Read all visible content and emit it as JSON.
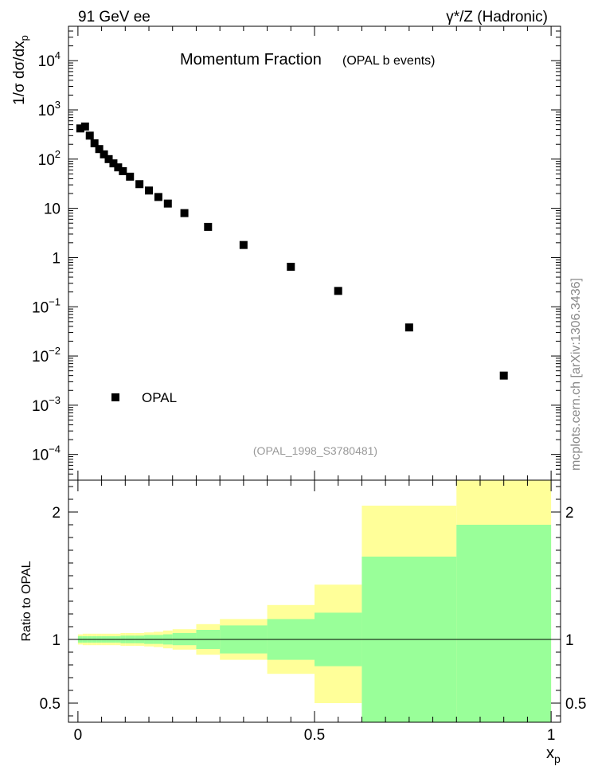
{
  "header": {
    "left": "91 GeV ee",
    "right": "γ*/Z (Hadronic)"
  },
  "watermark": "mcplots.cern.ch [arXiv:1306.3436]",
  "chart_data": [
    {
      "type": "scatter",
      "panel": "main",
      "title": "Momentum Fraction",
      "subtitle": "(OPAL b events)",
      "ylabel_parts": {
        "main": "1/σ dσ/dx",
        "sub": "p"
      },
      "yscale": "log",
      "ylim": [
        3e-05,
        50000
      ],
      "xlim": [
        -0.02,
        1.02
      ],
      "y_tick_labels": [
        {
          "v": 10000,
          "base": "10",
          "exp": "4"
        },
        {
          "v": 1000,
          "base": "10",
          "exp": "3"
        },
        {
          "v": 100,
          "base": "10",
          "exp": "2"
        },
        {
          "v": 10,
          "base": "10",
          "exp": ""
        },
        {
          "v": 1,
          "base": "1",
          "exp": ""
        },
        {
          "v": 0.1,
          "base": "10",
          "exp": "−1"
        },
        {
          "v": 0.01,
          "base": "10",
          "exp": "−2"
        },
        {
          "v": 0.001,
          "base": "10",
          "exp": "−3"
        },
        {
          "v": 0.0001,
          "base": "10",
          "exp": "−4"
        }
      ],
      "legend": {
        "entry": "OPAL",
        "color": "#000000",
        "placement": "bottom-left"
      },
      "annotation": "(OPAL_1998_S3780481)",
      "series": [
        {
          "name": "OPAL",
          "marker": "square",
          "color": "#000000",
          "x": [
            0.005,
            0.015,
            0.025,
            0.035,
            0.045,
            0.055,
            0.065,
            0.075,
            0.085,
            0.095,
            0.11,
            0.13,
            0.15,
            0.17,
            0.19,
            0.225,
            0.275,
            0.35,
            0.45,
            0.55,
            0.7,
            0.9
          ],
          "y": [
            420,
            460,
            300,
            210,
            160,
            125,
            100,
            82,
            68,
            57,
            44,
            31,
            23,
            17,
            12.5,
            8.0,
            4.2,
            1.8,
            0.65,
            0.21,
            0.038,
            0.004
          ]
        }
      ]
    },
    {
      "type": "area",
      "panel": "ratio",
      "ylabel": "Ratio to OPAL",
      "xlabel_parts": {
        "main": "x",
        "sub": "p"
      },
      "xlim": [
        -0.02,
        1.02
      ],
      "ylim": [
        0.35,
        2.25
      ],
      "x_ticks": [
        "0",
        "0.5",
        "1"
      ],
      "y_ticks": [
        "0.5",
        "1",
        "2"
      ],
      "colors": {
        "inner": "#99ff99",
        "outer": "#ffff99"
      },
      "reference_line": 1,
      "bands": [
        {
          "x0": 0.0,
          "x1": 0.01,
          "inner": [
            0.975,
            1.025
          ],
          "outer": [
            0.96,
            1.04
          ]
        },
        {
          "x0": 0.01,
          "x1": 0.02,
          "inner": [
            0.975,
            1.025
          ],
          "outer": [
            0.955,
            1.045
          ]
        },
        {
          "x0": 0.02,
          "x1": 0.03,
          "inner": [
            0.975,
            1.025
          ],
          "outer": [
            0.955,
            1.045
          ]
        },
        {
          "x0": 0.03,
          "x1": 0.04,
          "inner": [
            0.975,
            1.025
          ],
          "outer": [
            0.955,
            1.045
          ]
        },
        {
          "x0": 0.04,
          "x1": 0.05,
          "inner": [
            0.975,
            1.025
          ],
          "outer": [
            0.955,
            1.045
          ]
        },
        {
          "x0": 0.05,
          "x1": 0.06,
          "inner": [
            0.975,
            1.025
          ],
          "outer": [
            0.955,
            1.045
          ]
        },
        {
          "x0": 0.06,
          "x1": 0.07,
          "inner": [
            0.975,
            1.025
          ],
          "outer": [
            0.955,
            1.045
          ]
        },
        {
          "x0": 0.07,
          "x1": 0.08,
          "inner": [
            0.975,
            1.025
          ],
          "outer": [
            0.955,
            1.045
          ]
        },
        {
          "x0": 0.08,
          "x1": 0.09,
          "inner": [
            0.975,
            1.025
          ],
          "outer": [
            0.955,
            1.045
          ]
        },
        {
          "x0": 0.09,
          "x1": 0.1,
          "inner": [
            0.97,
            1.03
          ],
          "outer": [
            0.95,
            1.05
          ]
        },
        {
          "x0": 0.1,
          "x1": 0.12,
          "inner": [
            0.97,
            1.03
          ],
          "outer": [
            0.95,
            1.05
          ]
        },
        {
          "x0": 0.12,
          "x1": 0.14,
          "inner": [
            0.97,
            1.03
          ],
          "outer": [
            0.95,
            1.05
          ]
        },
        {
          "x0": 0.14,
          "x1": 0.16,
          "inner": [
            0.965,
            1.035
          ],
          "outer": [
            0.945,
            1.055
          ]
        },
        {
          "x0": 0.16,
          "x1": 0.18,
          "inner": [
            0.965,
            1.035
          ],
          "outer": [
            0.94,
            1.06
          ]
        },
        {
          "x0": 0.18,
          "x1": 0.2,
          "inner": [
            0.96,
            1.04
          ],
          "outer": [
            0.93,
            1.07
          ]
        },
        {
          "x0": 0.2,
          "x1": 0.25,
          "inner": [
            0.955,
            1.05
          ],
          "outer": [
            0.92,
            1.08
          ]
        },
        {
          "x0": 0.25,
          "x1": 0.3,
          "inner": [
            0.925,
            1.075
          ],
          "outer": [
            0.88,
            1.12
          ]
        },
        {
          "x0": 0.3,
          "x1": 0.4,
          "inner": [
            0.89,
            1.11
          ],
          "outer": [
            0.84,
            1.16
          ]
        },
        {
          "x0": 0.4,
          "x1": 0.5,
          "inner": [
            0.84,
            1.16
          ],
          "outer": [
            0.73,
            1.27
          ]
        },
        {
          "x0": 0.5,
          "x1": 0.6,
          "inner": [
            0.79,
            1.21
          ],
          "outer": [
            0.5,
            1.43
          ]
        },
        {
          "x0": 0.6,
          "x1": 0.8,
          "inner": [
            0.35,
            1.65
          ],
          "outer": [
            0.35,
            2.05
          ]
        },
        {
          "x0": 0.8,
          "x1": 1.0,
          "inner": [
            0.35,
            1.9
          ],
          "outer": [
            0.35,
            2.25
          ]
        }
      ]
    }
  ]
}
